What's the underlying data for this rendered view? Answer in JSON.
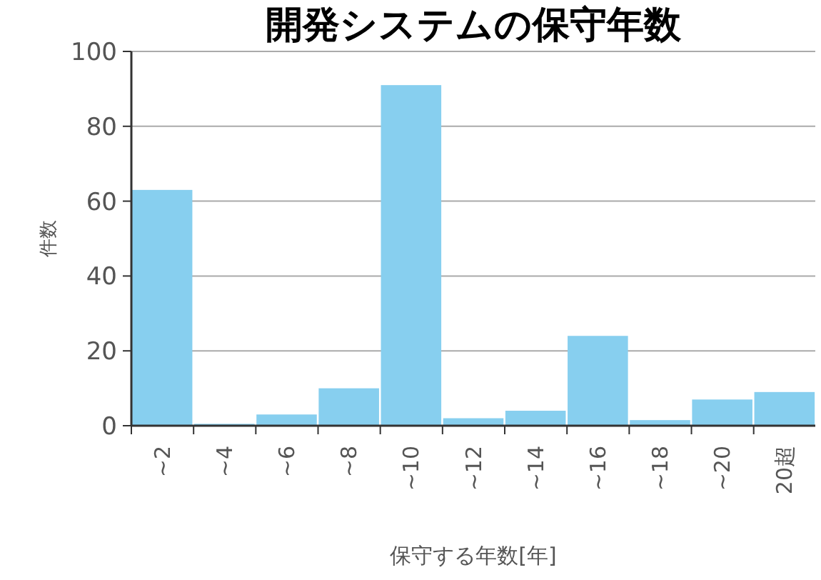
{
  "chart_data": {
    "type": "bar",
    "title": "開発システムの保守年数",
    "xlabel": "保守する年数[年]",
    "ylabel": "件数",
    "categories": [
      "~2",
      "~4",
      "~6",
      "~8",
      "~10",
      "~12",
      "~14",
      "~16",
      "~18",
      "~20",
      "20超"
    ],
    "values": [
      63,
      0.5,
      3,
      10,
      91,
      2,
      4,
      24,
      1.5,
      7,
      9
    ],
    "color": "#87cfef",
    "ylim": [
      0,
      100
    ],
    "yticks": [
      0,
      20,
      40,
      60,
      80,
      100
    ],
    "grid": "y"
  }
}
